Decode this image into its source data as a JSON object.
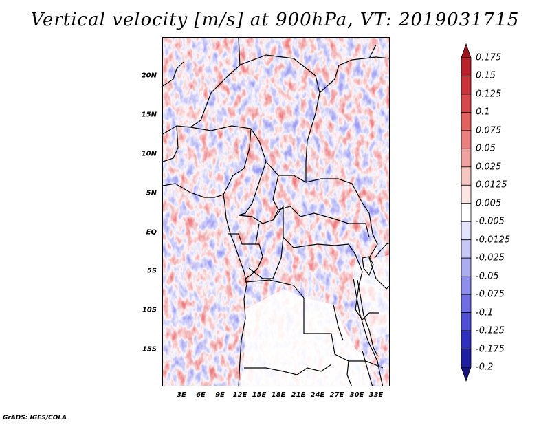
{
  "title": "Vertical velocity [m/s] at 900hPa, VT: 2019031715",
  "footer": "GrADS: IGES/COLA",
  "map": {
    "lat_labels": [
      "20N",
      "15N",
      "10N",
      "5N",
      "EQ",
      "5S",
      "10S",
      "15S"
    ],
    "lon_labels": [
      "3E",
      "6E",
      "9E",
      "12E",
      "15E",
      "18E",
      "21E",
      "24E",
      "27E",
      "30E",
      "33E"
    ],
    "field_colors": {
      "positive": "#e9666a",
      "negative": "#8a8af0",
      "neutral": "#ffffff"
    }
  },
  "colorbar": {
    "levels": [
      "0.175",
      "0.15",
      "0.125",
      "0.1",
      "0.075",
      "0.05",
      "0.025",
      "0.0125",
      "0.005",
      "-0.005",
      "-0.0125",
      "-0.025",
      "-0.05",
      "-0.075",
      "-0.1",
      "-0.125",
      "-0.175",
      "-0.2"
    ],
    "colors": [
      "#a0141e",
      "#b8232b",
      "#c8343a",
      "#d7484c",
      "#e2625f",
      "#ea8080",
      "#f0a2a0",
      "#f6c6c2",
      "#fbe6e3",
      "#ffffff",
      "#e3e3fb",
      "#c8c8f6",
      "#acacf1",
      "#8e8eec",
      "#6f6fe3",
      "#5050d6",
      "#3030c0",
      "#1e1ea0",
      "#15157d"
    ]
  }
}
